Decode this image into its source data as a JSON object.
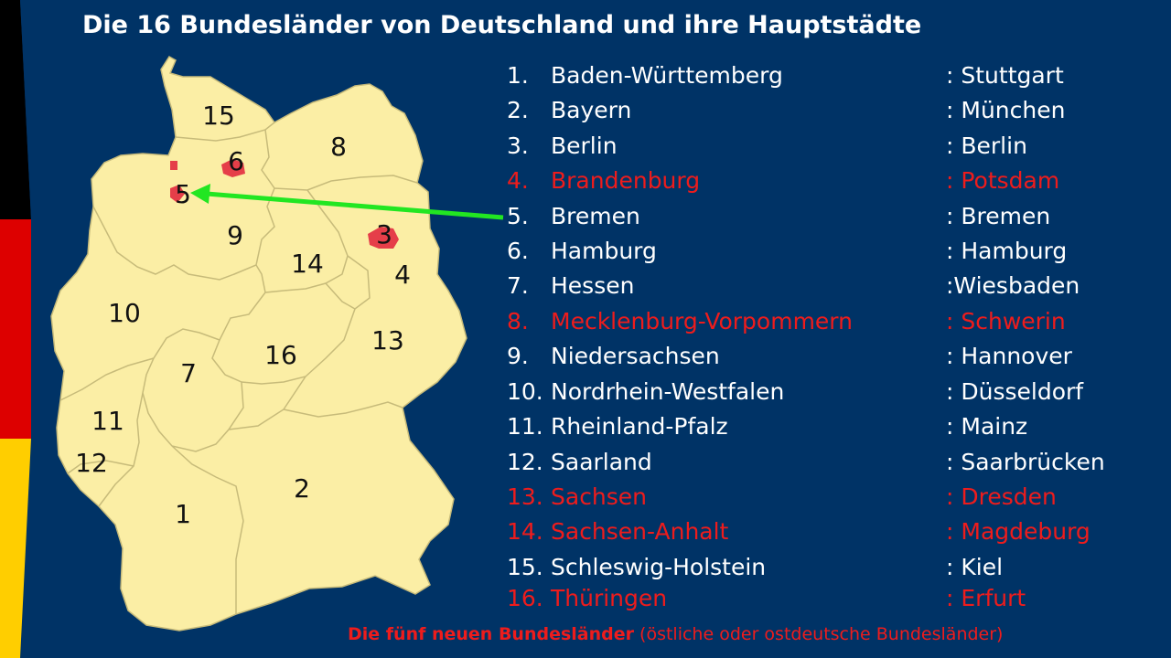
{
  "title": "Die 16 Bundesländer von Deutschland und ihre Hauptstädte",
  "colors": {
    "background": "#003366",
    "map_fill": "#fbeea5",
    "city_states": "#e53e49",
    "highlight_red": "#ee1c1c",
    "arrow": "#22e622",
    "flag_black": "#000000",
    "flag_red": "#dd0000",
    "flag_gold": "#ffce00"
  },
  "map_labels": [
    "1",
    "2",
    "3",
    "4",
    "5",
    "6",
    "7",
    "8",
    "9",
    "10",
    "11",
    "12",
    "13",
    "14",
    "15",
    "16"
  ],
  "states": [
    {
      "num": "1.",
      "name": "Baden-Württemberg",
      "capital": ": Stuttgart",
      "neu": false
    },
    {
      "num": "2.",
      "name": "Bayern",
      "capital": ": München",
      "neu": false
    },
    {
      "num": "3.",
      "name": "Berlin",
      "capital": ": Berlin",
      "neu": false
    },
    {
      "num": "4.",
      "name": "Brandenburg",
      "capital": ": Potsdam",
      "neu": true
    },
    {
      "num": "5.",
      "name": "Bremen",
      "capital": ": Bremen",
      "neu": false
    },
    {
      "num": "6.",
      "name": "Hamburg",
      "capital": ": Hamburg",
      "neu": false
    },
    {
      "num": "7.",
      "name": "Hessen",
      "capital": ":Wiesbaden",
      "neu": false
    },
    {
      "num": "8.",
      "name": "Mecklenburg-Vorpommern",
      "capital": ": Schwerin",
      "neu": true
    },
    {
      "num": "9.",
      "name": "Niedersachsen",
      "capital": ": Hannover",
      "neu": false
    },
    {
      "num": "10.",
      "name": "Nordrhein-Westfalen",
      "capital": ": Düsseldorf",
      "neu": false
    },
    {
      "num": "11.",
      "name": "Rheinland-Pfalz",
      "capital": ": Mainz",
      "neu": false
    },
    {
      "num": "12.",
      "name": "Saarland",
      "capital": ": Saarbrücken",
      "neu": false
    },
    {
      "num": "13.",
      "name": "Sachsen",
      "capital": ": Dresden",
      "neu": true
    },
    {
      "num": "14.",
      "name": "Sachsen-Anhalt",
      "capital": ": Magdeburg",
      "neu": true
    },
    {
      "num": "15.",
      "name": "Schleswig-Holstein",
      "capital": ": Kiel",
      "neu": false
    },
    {
      "num": "16.",
      "name": "Thüringen",
      "capital": ": Erfurt",
      "neu": true
    }
  ],
  "footnote": {
    "strong": "Die fünf neuen Bundesländer",
    "rest": " (östliche oder ostdeutsche Bundesländer)"
  }
}
